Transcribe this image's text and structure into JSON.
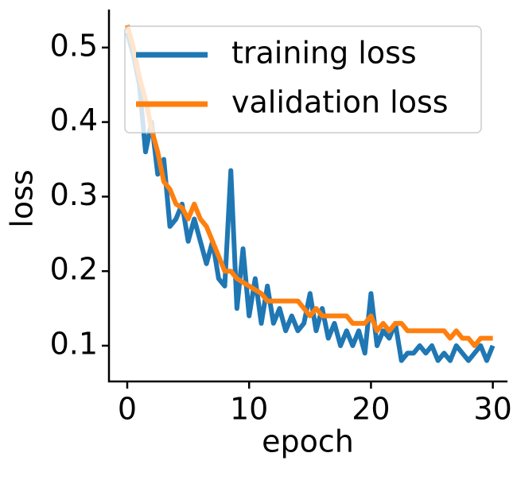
{
  "chart_data": {
    "type": "line",
    "x": [
      0,
      0.5,
      1,
      1.5,
      2,
      2.5,
      3,
      3.5,
      4,
      4.5,
      5,
      5.5,
      6,
      6.5,
      7,
      7.5,
      8,
      8.5,
      9,
      9.5,
      10,
      10.5,
      11,
      11.5,
      12,
      12.5,
      13,
      13.5,
      14,
      14.5,
      15,
      15.5,
      16,
      16.5,
      17,
      17.5,
      18,
      18.5,
      19,
      19.5,
      20,
      20.5,
      21,
      21.5,
      22,
      22.5,
      23,
      23.5,
      24,
      24.5,
      25,
      25.5,
      26,
      26.5,
      27,
      27.5,
      28,
      28.5,
      29,
      29.5,
      30
    ],
    "series": [
      {
        "name": "training loss",
        "color": "#1f77b4",
        "values": [
          0.52,
          0.49,
          0.45,
          0.36,
          0.4,
          0.33,
          0.35,
          0.26,
          0.27,
          0.29,
          0.24,
          0.27,
          0.24,
          0.21,
          0.24,
          0.19,
          0.18,
          0.335,
          0.15,
          0.23,
          0.14,
          0.19,
          0.13,
          0.18,
          0.13,
          0.15,
          0.12,
          0.14,
          0.12,
          0.13,
          0.17,
          0.12,
          0.15,
          0.11,
          0.13,
          0.1,
          0.12,
          0.1,
          0.12,
          0.09,
          0.17,
          0.1,
          0.12,
          0.11,
          0.13,
          0.08,
          0.09,
          0.09,
          0.1,
          0.09,
          0.1,
          0.08,
          0.09,
          0.08,
          0.1,
          0.09,
          0.08,
          0.09,
          0.1,
          0.08,
          0.1
        ]
      },
      {
        "name": "validation loss",
        "color": "#ff7f0e",
        "values": [
          0.53,
          0.5,
          0.46,
          0.43,
          0.39,
          0.36,
          0.32,
          0.31,
          0.29,
          0.285,
          0.27,
          0.29,
          0.27,
          0.26,
          0.24,
          0.22,
          0.2,
          0.2,
          0.19,
          0.185,
          0.18,
          0.175,
          0.17,
          0.16,
          0.16,
          0.16,
          0.16,
          0.16,
          0.16,
          0.15,
          0.14,
          0.15,
          0.14,
          0.14,
          0.14,
          0.14,
          0.14,
          0.13,
          0.13,
          0.13,
          0.14,
          0.12,
          0.13,
          0.12,
          0.13,
          0.13,
          0.12,
          0.12,
          0.12,
          0.12,
          0.12,
          0.12,
          0.12,
          0.11,
          0.12,
          0.11,
          0.11,
          0.1,
          0.11,
          0.11,
          0.11
        ]
      }
    ],
    "xlabel": "epoch",
    "ylabel": "loss",
    "xlim": [
      -1.5,
      31.2
    ],
    "ylim": [
      0.052,
      0.551
    ],
    "xticks": [
      0,
      10,
      20,
      30
    ],
    "yticks": [
      0.1,
      0.2,
      0.3,
      0.4,
      0.5
    ],
    "legend": "upper right"
  }
}
